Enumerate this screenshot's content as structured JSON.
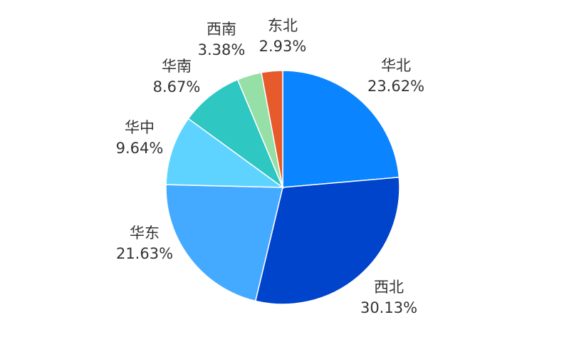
{
  "chart_data": {
    "type": "pie",
    "title": "",
    "start_angle_deg": 0,
    "direction": "clockwise",
    "slices": [
      {
        "name": "华北",
        "value": 23.62,
        "value_label": "23.62%",
        "color": "#0A84FF"
      },
      {
        "name": "西北",
        "value": 30.13,
        "value_label": "30.13%",
        "color": "#0044CC"
      },
      {
        "name": "华东",
        "value": 21.63,
        "value_label": "21.63%",
        "color": "#44AAFF"
      },
      {
        "name": "华中",
        "value": 9.64,
        "value_label": "9.64%",
        "color": "#5FD3FF"
      },
      {
        "name": "华南",
        "value": 8.67,
        "value_label": "8.67%",
        "color": "#2EC7C2"
      },
      {
        "name": "西南",
        "value": 3.38,
        "value_label": "3.38%",
        "color": "#96DFA6"
      },
      {
        "name": "东北",
        "value": 2.93,
        "value_label": "2.93%",
        "color": "#E65A2B"
      }
    ]
  }
}
